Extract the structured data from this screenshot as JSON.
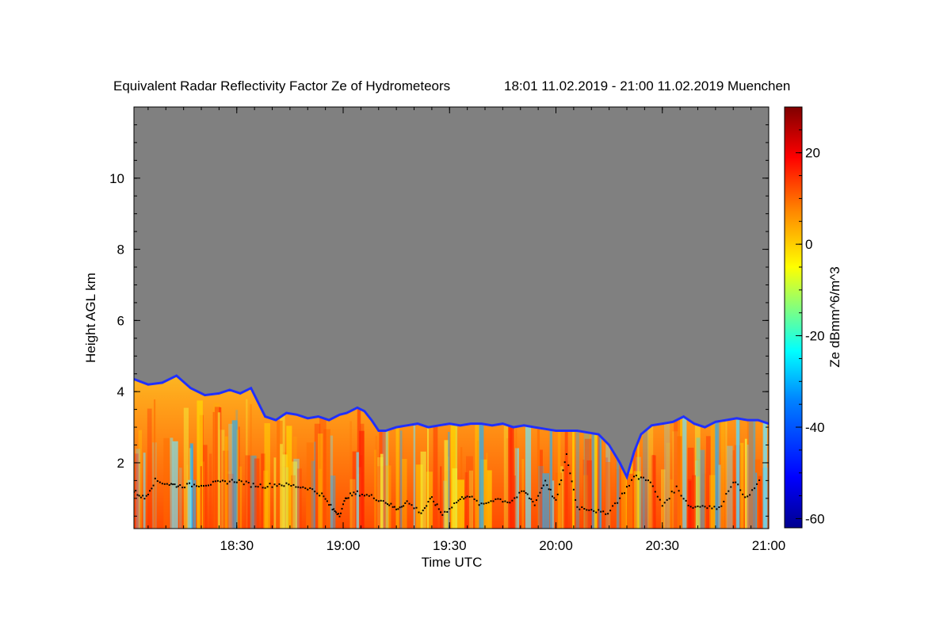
{
  "chart_data": {
    "type": "heatmap",
    "title": "Equivalent Radar Reflectivity Factor Ze of Hydrometeors",
    "time_range_text": "18:01 11.02.2019 - 21:00 11.02.2019 Muenchen",
    "xlabel": "Time UTC",
    "ylabel": "Height AGL km",
    "colorbar_label": "Ze dBmm^6/m^3",
    "x_range_minutes": [
      1081,
      1260
    ],
    "x_ticks": [
      {
        "label": "18:30",
        "minutes": 1110
      },
      {
        "label": "19:00",
        "minutes": 1140
      },
      {
        "label": "19:30",
        "minutes": 1170
      },
      {
        "label": "20:00",
        "minutes": 1200
      },
      {
        "label": "20:30",
        "minutes": 1230
      },
      {
        "label": "21:00",
        "minutes": 1260
      }
    ],
    "y_range_km": [
      0.15,
      12.0
    ],
    "y_ticks": [
      {
        "label": "2",
        "value": 2
      },
      {
        "label": "4",
        "value": 4
      },
      {
        "label": "6",
        "value": 6
      },
      {
        "label": "8",
        "value": 8
      },
      {
        "label": "10",
        "value": 10
      }
    ],
    "colorbar_range": [
      -62,
      30
    ],
    "colorbar_ticks": [
      {
        "label": "20",
        "value": 20
      },
      {
        "label": "0",
        "value": 0
      },
      {
        "label": "-20",
        "value": -20
      },
      {
        "label": "-40",
        "value": -40
      },
      {
        "label": "-60",
        "value": -60
      }
    ],
    "no_signal_color": "#808080",
    "colormap": [
      "#00008f",
      "#0000ff",
      "#0080ff",
      "#00ffff",
      "#80ff80",
      "#ffff00",
      "#ff8000",
      "#ff0000",
      "#800000"
    ],
    "echo_top_km": [
      {
        "t": 1081,
        "h": 4.35
      },
      {
        "t": 1085,
        "h": 4.2
      },
      {
        "t": 1089,
        "h": 4.25
      },
      {
        "t": 1093,
        "h": 4.45
      },
      {
        "t": 1097,
        "h": 4.1
      },
      {
        "t": 1101,
        "h": 3.9
      },
      {
        "t": 1105,
        "h": 3.95
      },
      {
        "t": 1108,
        "h": 4.05
      },
      {
        "t": 1111,
        "h": 3.95
      },
      {
        "t": 1114,
        "h": 4.1
      },
      {
        "t": 1116,
        "h": 3.7
      },
      {
        "t": 1118,
        "h": 3.3
      },
      {
        "t": 1121,
        "h": 3.2
      },
      {
        "t": 1124,
        "h": 3.4
      },
      {
        "t": 1127,
        "h": 3.35
      },
      {
        "t": 1130,
        "h": 3.25
      },
      {
        "t": 1133,
        "h": 3.3
      },
      {
        "t": 1136,
        "h": 3.2
      },
      {
        "t": 1139,
        "h": 3.35
      },
      {
        "t": 1141,
        "h": 3.4
      },
      {
        "t": 1144,
        "h": 3.55
      },
      {
        "t": 1146,
        "h": 3.45
      },
      {
        "t": 1148,
        "h": 3.2
      },
      {
        "t": 1150,
        "h": 2.9
      },
      {
        "t": 1152,
        "h": 2.9
      },
      {
        "t": 1155,
        "h": 3.0
      },
      {
        "t": 1158,
        "h": 3.05
      },
      {
        "t": 1161,
        "h": 3.1
      },
      {
        "t": 1164,
        "h": 3.0
      },
      {
        "t": 1167,
        "h": 3.05
      },
      {
        "t": 1170,
        "h": 3.1
      },
      {
        "t": 1173,
        "h": 3.05
      },
      {
        "t": 1176,
        "h": 3.1
      },
      {
        "t": 1179,
        "h": 3.1
      },
      {
        "t": 1182,
        "h": 3.05
      },
      {
        "t": 1185,
        "h": 3.1
      },
      {
        "t": 1188,
        "h": 3.0
      },
      {
        "t": 1191,
        "h": 3.05
      },
      {
        "t": 1194,
        "h": 3.0
      },
      {
        "t": 1197,
        "h": 2.95
      },
      {
        "t": 1200,
        "h": 2.9
      },
      {
        "t": 1203,
        "h": 2.9
      },
      {
        "t": 1206,
        "h": 2.9
      },
      {
        "t": 1209,
        "h": 2.85
      },
      {
        "t": 1212,
        "h": 2.8
      },
      {
        "t": 1215,
        "h": 2.5
      },
      {
        "t": 1218,
        "h": 2.0
      },
      {
        "t": 1220,
        "h": 1.6
      },
      {
        "t": 1222,
        "h": 2.3
      },
      {
        "t": 1224,
        "h": 2.8
      },
      {
        "t": 1227,
        "h": 3.05
      },
      {
        "t": 1230,
        "h": 3.1
      },
      {
        "t": 1233,
        "h": 3.15
      },
      {
        "t": 1236,
        "h": 3.3
      },
      {
        "t": 1239,
        "h": 3.1
      },
      {
        "t": 1242,
        "h": 3.0
      },
      {
        "t": 1245,
        "h": 3.15
      },
      {
        "t": 1248,
        "h": 3.2
      },
      {
        "t": 1251,
        "h": 3.25
      },
      {
        "t": 1254,
        "h": 3.2
      },
      {
        "t": 1257,
        "h": 3.2
      },
      {
        "t": 1260,
        "h": 3.1
      }
    ],
    "cloud_base_km": [
      {
        "t": 1081,
        "h": 1.2
      },
      {
        "t": 1084,
        "h": 1.0
      },
      {
        "t": 1087,
        "h": 1.5
      },
      {
        "t": 1091,
        "h": 1.4
      },
      {
        "t": 1094,
        "h": 1.35
      },
      {
        "t": 1098,
        "h": 1.38
      },
      {
        "t": 1102,
        "h": 1.4
      },
      {
        "t": 1106,
        "h": 1.45
      },
      {
        "t": 1110,
        "h": 1.5
      },
      {
        "t": 1114,
        "h": 1.38
      },
      {
        "t": 1118,
        "h": 1.35
      },
      {
        "t": 1122,
        "h": 1.4
      },
      {
        "t": 1126,
        "h": 1.35
      },
      {
        "t": 1130,
        "h": 1.3
      },
      {
        "t": 1134,
        "h": 1.1
      },
      {
        "t": 1137,
        "h": 0.7
      },
      {
        "t": 1139,
        "h": 0.55
      },
      {
        "t": 1141,
        "h": 1.05
      },
      {
        "t": 1144,
        "h": 1.15
      },
      {
        "t": 1148,
        "h": 1.05
      },
      {
        "t": 1152,
        "h": 0.9
      },
      {
        "t": 1155,
        "h": 0.7
      },
      {
        "t": 1158,
        "h": 0.9
      },
      {
        "t": 1162,
        "h": 0.6
      },
      {
        "t": 1165,
        "h": 1.0
      },
      {
        "t": 1168,
        "h": 0.55
      },
      {
        "t": 1172,
        "h": 0.9
      },
      {
        "t": 1175,
        "h": 1.1
      },
      {
        "t": 1179,
        "h": 0.8
      },
      {
        "t": 1183,
        "h": 1.0
      },
      {
        "t": 1187,
        "h": 0.9
      },
      {
        "t": 1191,
        "h": 1.2
      },
      {
        "t": 1194,
        "h": 0.85
      },
      {
        "t": 1197,
        "h": 1.5
      },
      {
        "t": 1200,
        "h": 0.9
      },
      {
        "t": 1203,
        "h": 2.2
      },
      {
        "t": 1206,
        "h": 0.75
      },
      {
        "t": 1210,
        "h": 0.7
      },
      {
        "t": 1214,
        "h": 0.55
      },
      {
        "t": 1218,
        "h": 1.0
      },
      {
        "t": 1222,
        "h": 1.6
      },
      {
        "t": 1226,
        "h": 1.55
      },
      {
        "t": 1230,
        "h": 0.8
      },
      {
        "t": 1234,
        "h": 1.3
      },
      {
        "t": 1238,
        "h": 0.75
      },
      {
        "t": 1242,
        "h": 0.8
      },
      {
        "t": 1246,
        "h": 0.7
      },
      {
        "t": 1250,
        "h": 1.5
      },
      {
        "t": 1254,
        "h": 1.0
      },
      {
        "t": 1258,
        "h": 1.6
      }
    ]
  }
}
